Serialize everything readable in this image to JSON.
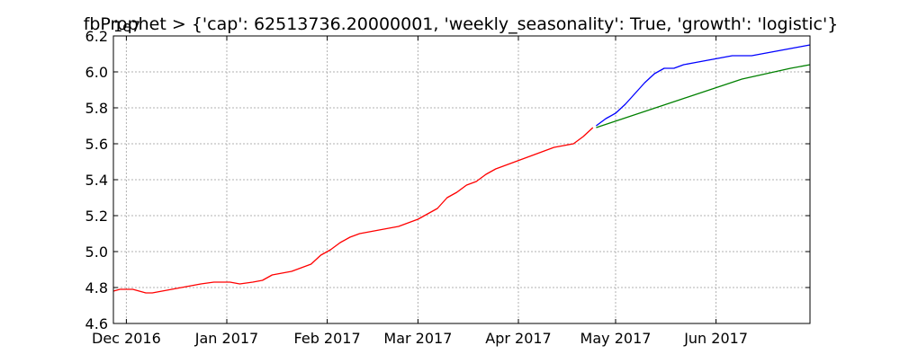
{
  "chart_data": {
    "type": "line",
    "title": "fbProphet > {'cap': 62513736.20000001, 'weekly_seasonality': True, 'growth': 'logistic'}",
    "xlabel": "",
    "ylabel": "",
    "y_offset_text": "1e7",
    "x_tick_labels": [
      {
        "date": "2016-12-01",
        "label": "Dec 2016"
      },
      {
        "date": "2017-01-01",
        "label": "Jan 2017"
      },
      {
        "date": "2017-02-01",
        "label": "Feb 2017"
      },
      {
        "date": "2017-03-01",
        "label": "Mar 2017"
      },
      {
        "date": "2017-04-01",
        "label": "Apr 2017"
      },
      {
        "date": "2017-05-01",
        "label": "May 2017"
      },
      {
        "date": "2017-06-01",
        "label": "Jun 2017"
      }
    ],
    "y_ticks": [
      {
        "value": 4.6,
        "label": "4.6"
      },
      {
        "value": 4.8,
        "label": "4.8"
      },
      {
        "value": 5.0,
        "label": "5.0"
      },
      {
        "value": 5.2,
        "label": "5.2"
      },
      {
        "value": 5.4,
        "label": "5.4"
      },
      {
        "value": 5.6,
        "label": "5.6"
      },
      {
        "value": 5.8,
        "label": "5.8"
      },
      {
        "value": 6.0,
        "label": "6.0"
      },
      {
        "value": 6.2,
        "label": "6.2"
      }
    ],
    "xlim": [
      "2016-11-27",
      "2017-06-30"
    ],
    "ylim": [
      4.6,
      6.2
    ],
    "grid": true,
    "series": [
      {
        "color": "#ff0000",
        "points": [
          [
            "2016-11-27",
            4.78
          ],
          [
            "2016-11-29",
            4.79
          ],
          [
            "2016-12-01",
            4.79
          ],
          [
            "2016-12-03",
            4.79
          ],
          [
            "2016-12-05",
            4.78
          ],
          [
            "2016-12-07",
            4.77
          ],
          [
            "2016-12-09",
            4.77
          ],
          [
            "2016-12-12",
            4.78
          ],
          [
            "2016-12-15",
            4.79
          ],
          [
            "2016-12-18",
            4.8
          ],
          [
            "2016-12-21",
            4.81
          ],
          [
            "2016-12-24",
            4.82
          ],
          [
            "2016-12-28",
            4.83
          ],
          [
            "2017-01-02",
            4.83
          ],
          [
            "2017-01-05",
            4.82
          ],
          [
            "2017-01-09",
            4.83
          ],
          [
            "2017-01-12",
            4.84
          ],
          [
            "2017-01-15",
            4.87
          ],
          [
            "2017-01-18",
            4.88
          ],
          [
            "2017-01-21",
            4.89
          ],
          [
            "2017-01-24",
            4.91
          ],
          [
            "2017-01-27",
            4.93
          ],
          [
            "2017-01-30",
            4.98
          ],
          [
            "2017-02-02",
            5.01
          ],
          [
            "2017-02-05",
            5.05
          ],
          [
            "2017-02-08",
            5.08
          ],
          [
            "2017-02-11",
            5.1
          ],
          [
            "2017-02-14",
            5.11
          ],
          [
            "2017-02-17",
            5.12
          ],
          [
            "2017-02-20",
            5.13
          ],
          [
            "2017-02-23",
            5.14
          ],
          [
            "2017-02-26",
            5.16
          ],
          [
            "2017-03-01",
            5.18
          ],
          [
            "2017-03-04",
            5.21
          ],
          [
            "2017-03-07",
            5.24
          ],
          [
            "2017-03-10",
            5.3
          ],
          [
            "2017-03-13",
            5.33
          ],
          [
            "2017-03-16",
            5.37
          ],
          [
            "2017-03-19",
            5.39
          ],
          [
            "2017-03-22",
            5.43
          ],
          [
            "2017-03-25",
            5.46
          ],
          [
            "2017-03-28",
            5.48
          ],
          [
            "2017-03-31",
            5.5
          ],
          [
            "2017-04-03",
            5.52
          ],
          [
            "2017-04-06",
            5.54
          ],
          [
            "2017-04-09",
            5.56
          ],
          [
            "2017-04-12",
            5.58
          ],
          [
            "2017-04-15",
            5.59
          ],
          [
            "2017-04-18",
            5.6
          ],
          [
            "2017-04-21",
            5.64
          ],
          [
            "2017-04-24",
            5.69
          ]
        ]
      },
      {
        "color": "#0000ff",
        "points": [
          [
            "2017-04-25",
            5.7
          ],
          [
            "2017-04-28",
            5.74
          ],
          [
            "2017-05-01",
            5.77
          ],
          [
            "2017-05-04",
            5.82
          ],
          [
            "2017-05-07",
            5.88
          ],
          [
            "2017-05-10",
            5.94
          ],
          [
            "2017-05-13",
            5.99
          ],
          [
            "2017-05-16",
            6.02
          ],
          [
            "2017-05-19",
            6.02
          ],
          [
            "2017-05-22",
            6.04
          ],
          [
            "2017-05-25",
            6.05
          ],
          [
            "2017-05-28",
            6.06
          ],
          [
            "2017-05-31",
            6.07
          ],
          [
            "2017-06-03",
            6.08
          ],
          [
            "2017-06-06",
            6.09
          ],
          [
            "2017-06-09",
            6.09
          ],
          [
            "2017-06-12",
            6.09
          ],
          [
            "2017-06-15",
            6.1
          ],
          [
            "2017-06-18",
            6.11
          ],
          [
            "2017-06-21",
            6.12
          ],
          [
            "2017-06-24",
            6.13
          ],
          [
            "2017-06-27",
            6.14
          ],
          [
            "2017-06-30",
            6.15
          ]
        ]
      },
      {
        "color": "#008000",
        "points": [
          [
            "2017-04-25",
            5.69
          ],
          [
            "2017-04-30",
            5.72
          ],
          [
            "2017-05-05",
            5.75
          ],
          [
            "2017-05-10",
            5.78
          ],
          [
            "2017-05-15",
            5.81
          ],
          [
            "2017-05-20",
            5.84
          ],
          [
            "2017-05-25",
            5.87
          ],
          [
            "2017-05-30",
            5.9
          ],
          [
            "2017-06-04",
            5.93
          ],
          [
            "2017-06-09",
            5.96
          ],
          [
            "2017-06-14",
            5.98
          ],
          [
            "2017-06-19",
            6.0
          ],
          [
            "2017-06-24",
            6.02
          ],
          [
            "2017-06-30",
            6.04
          ]
        ]
      }
    ]
  }
}
